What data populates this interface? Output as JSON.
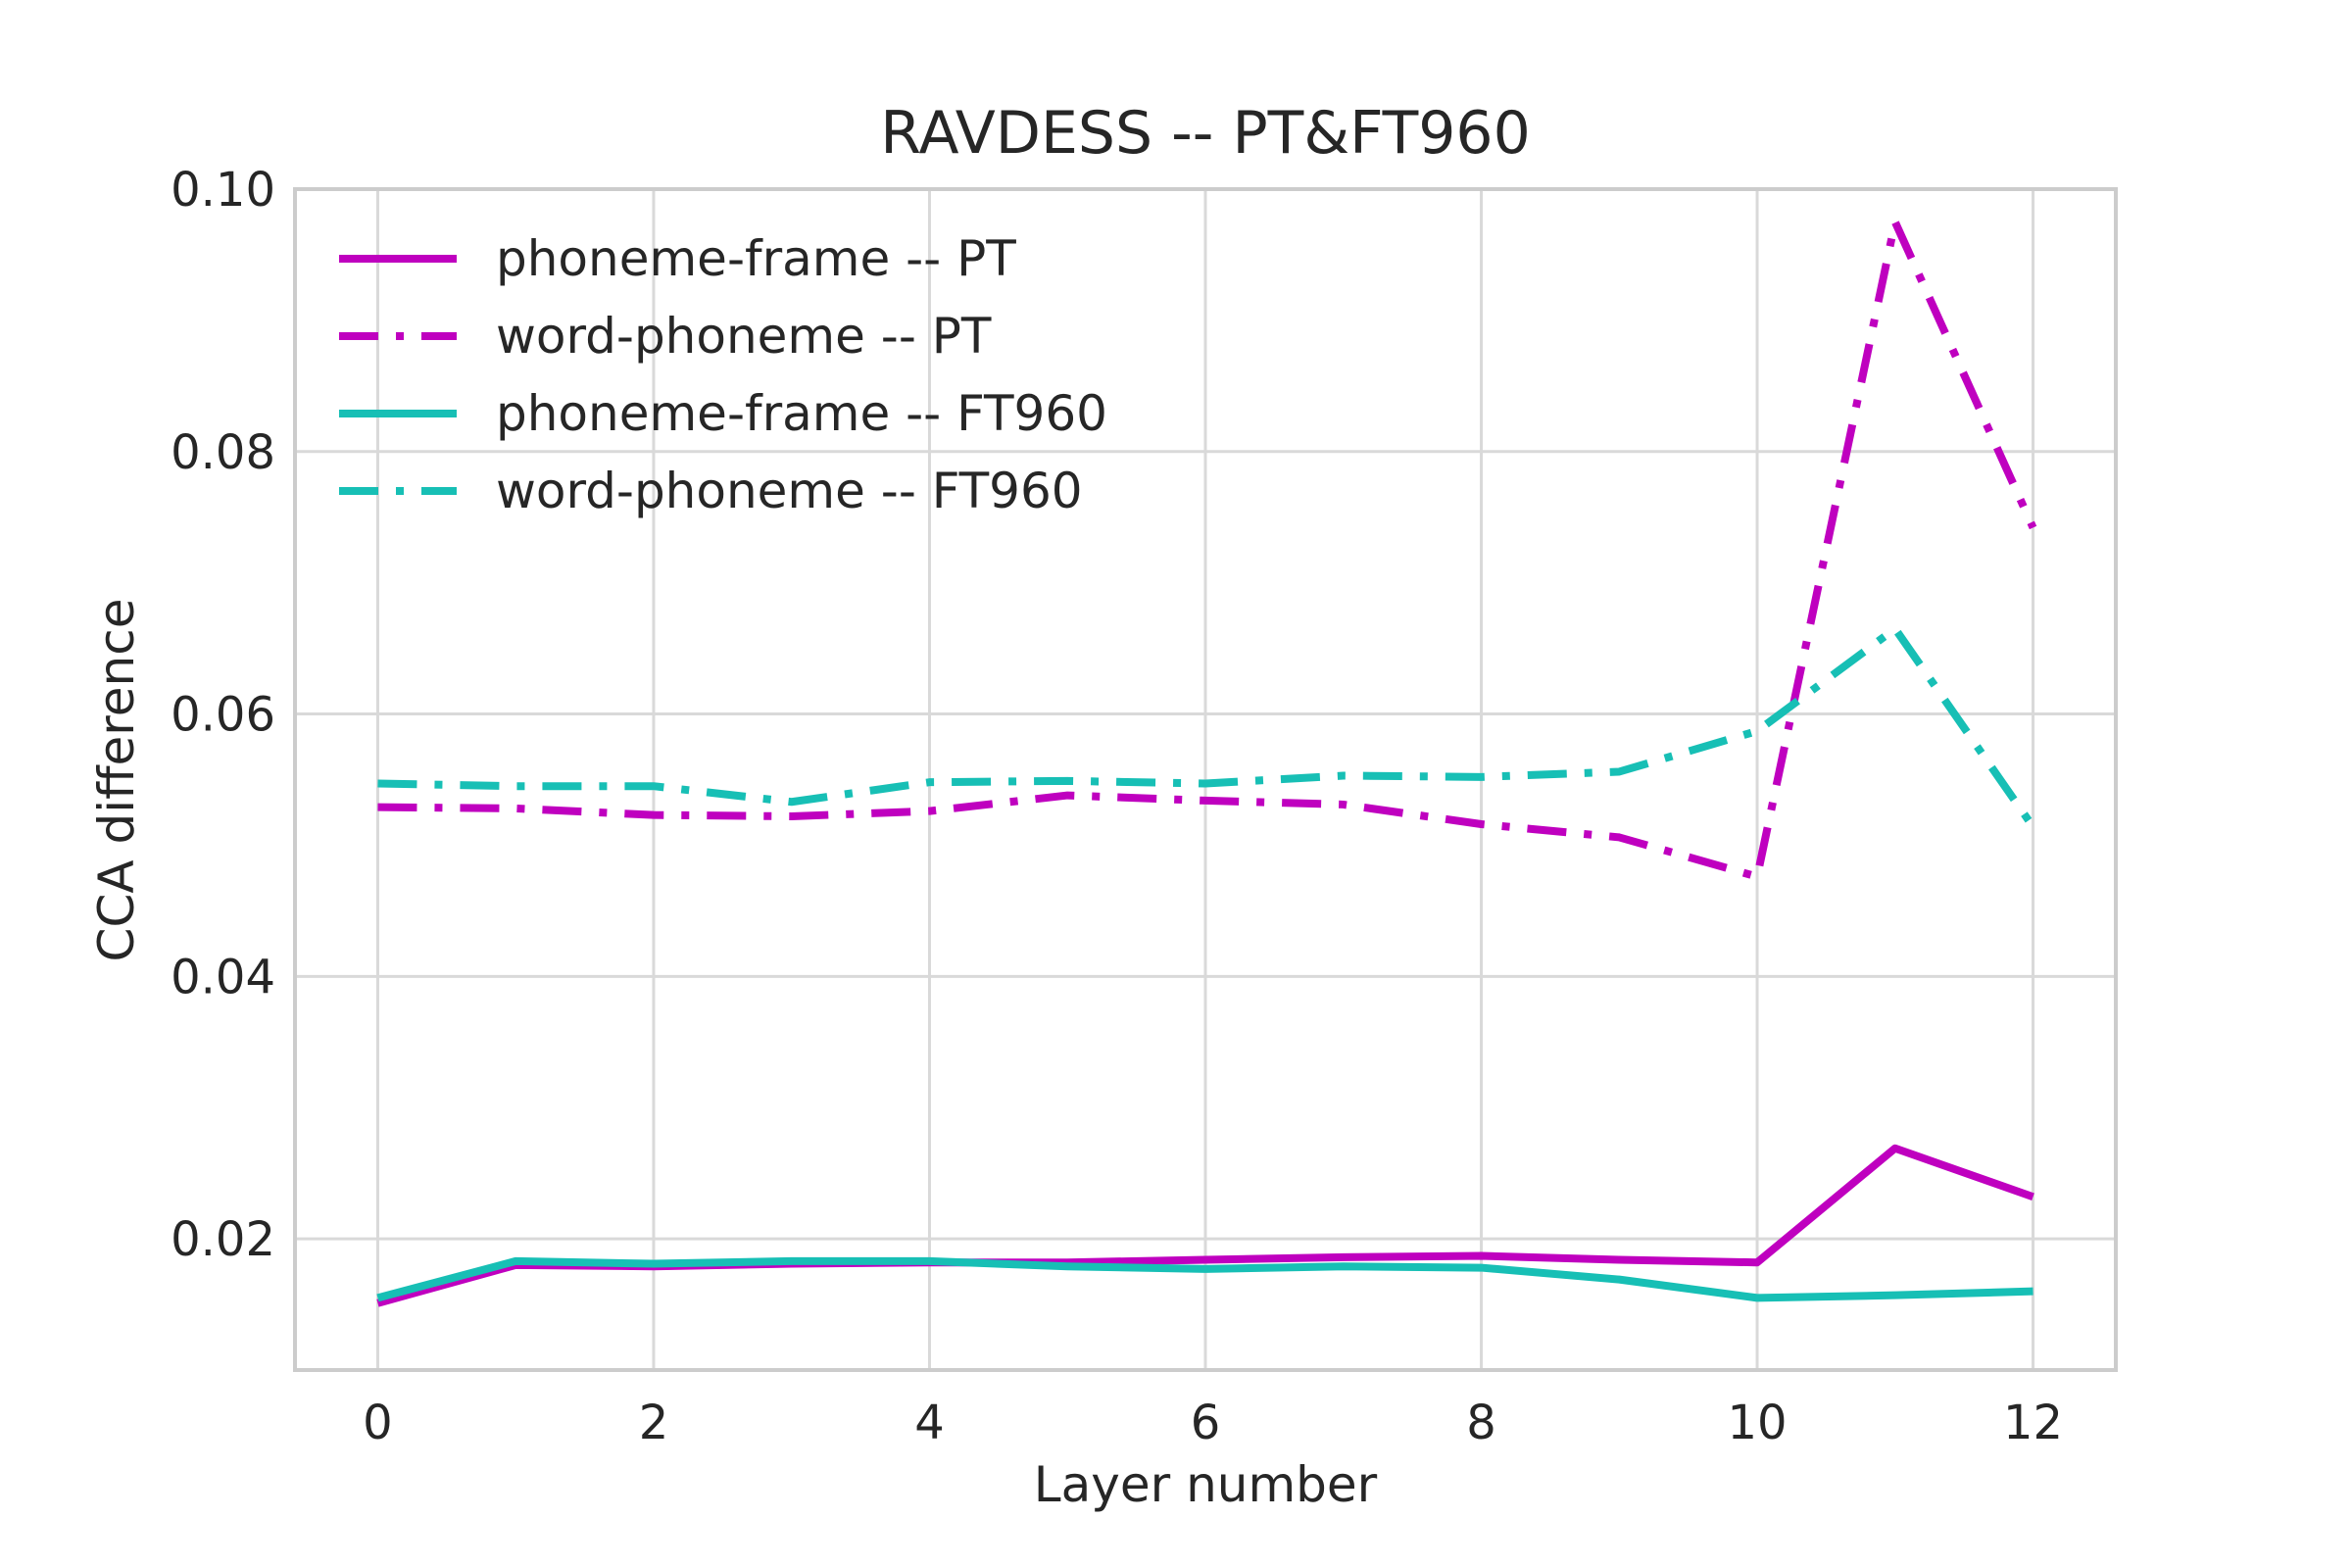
{
  "chart_data": {
    "type": "line",
    "title": "RAVDESS -- PT&FT960",
    "xlabel": "Layer number",
    "ylabel": "CCA difference",
    "xlim": [
      -0.6,
      12.6
    ],
    "ylim": [
      0.01,
      0.1
    ],
    "xticks": [
      0,
      2,
      4,
      6,
      8,
      10,
      12
    ],
    "yticks": [
      0.02,
      0.04,
      0.06,
      0.08,
      0.1
    ],
    "ytick_labels": [
      "0.02",
      "0.04",
      "0.06",
      "0.08",
      "0.10"
    ],
    "grid": true,
    "legend_position": "top-left",
    "x": [
      0,
      1,
      2,
      3,
      4,
      5,
      6,
      7,
      8,
      9,
      10,
      11,
      12
    ],
    "series": [
      {
        "name": "phoneme-frame -- PT",
        "color": "#bf00bf",
        "style": "solid",
        "values": [
          0.0151,
          0.018,
          0.0179,
          0.0181,
          0.0182,
          0.0182,
          0.0184,
          0.0186,
          0.0187,
          0.0184,
          0.0182,
          0.0269,
          0.0232
        ]
      },
      {
        "name": "word-phoneme -- PT",
        "color": "#bf00bf",
        "style": "dashdot",
        "values": [
          0.0529,
          0.0528,
          0.0523,
          0.0522,
          0.0526,
          0.0538,
          0.0534,
          0.0531,
          0.0516,
          0.0506,
          0.0476,
          0.0975,
          0.0742
        ]
      },
      {
        "name": "phoneme-frame -- FT960",
        "color": "#17bfb5",
        "style": "solid",
        "values": [
          0.0155,
          0.0183,
          0.0181,
          0.0183,
          0.0183,
          0.0179,
          0.0177,
          0.0179,
          0.0178,
          0.0169,
          0.0155,
          0.0157,
          0.016
        ]
      },
      {
        "name": "word-phoneme -- FT960",
        "color": "#17bfb5",
        "style": "dashdot",
        "values": [
          0.0547,
          0.0545,
          0.0545,
          0.0533,
          0.0548,
          0.0549,
          0.0547,
          0.0553,
          0.0552,
          0.0556,
          0.0587,
          0.0665,
          0.0514
        ]
      }
    ]
  }
}
